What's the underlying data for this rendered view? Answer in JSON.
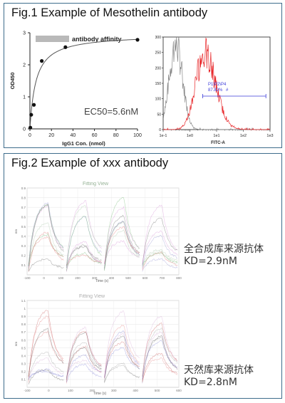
{
  "fig1": {
    "title": "Fig.1 Example of Mesothelin antibody",
    "binding_chart": {
      "legend": "antibody affinity",
      "annotation": "EC50=5.6nM"
    },
    "flow_chart": {
      "gate_name": "P1\\P2\\P4",
      "gate_percent": "87.82%",
      "gate_marker": "#"
    }
  },
  "fig2": {
    "title": "Fig.2 Example of xxx antibody",
    "chart_a_title": "Fitting View",
    "chart_a_xlabel": "Time (s)",
    "chart_b_title": "Fitting View",
    "chart_b_xlabel": "Time (s)",
    "note1_line1": "全合成库来源抗体",
    "note1_line2": "KD=2.9nM",
    "note2_line1": "天然库来源抗体",
    "note2_line2": "KD=2.8nM"
  },
  "chart_data": [
    {
      "type": "scatter",
      "xlabel": "IgG1 Con. (nmol)",
      "ylabel": "OD450",
      "xlim": [
        0,
        100
      ],
      "ylim": [
        0,
        3
      ],
      "xticks": [
        0,
        20,
        40,
        60,
        80,
        100
      ],
      "yticks": [
        0,
        1,
        2,
        3
      ],
      "points": [
        {
          "x": 0.4,
          "y": 0.04
        },
        {
          "x": 1.2,
          "y": 0.44
        },
        {
          "x": 3.7,
          "y": 0.75
        },
        {
          "x": 11,
          "y": 2.12
        },
        {
          "x": 33,
          "y": 2.55
        },
        {
          "x": 100,
          "y": 2.78
        }
      ],
      "fit_curve": {
        "model": "Bmax*x/(EC50+x)",
        "Bmax": 2.95,
        "EC50": 5.6
      }
    },
    {
      "type": "line",
      "xlabel": "FITC-A",
      "xscale": "log",
      "xlim": [
        0.1,
        1000
      ],
      "ylim": [
        0,
        300
      ],
      "xtick_labels": [
        "1e-1",
        "1e0",
        "1e1",
        "1e2",
        "1e3"
      ],
      "yticks": [
        0,
        50,
        100,
        150,
        200,
        250,
        300
      ],
      "series": [
        {
          "color": "#888888",
          "peak_x": 0.3,
          "peak_y": 275
        },
        {
          "color": "#e8272a",
          "peak_x": 3.5,
          "peak_y": 245
        }
      ],
      "gate": {
        "from": 3.0,
        "to": 700
      }
    },
    {
      "type": "line",
      "title": "Fitting View",
      "xlabel": "Time (s)",
      "ylabel": "nm",
      "xlim": [
        -100,
        800
      ],
      "ylim": [
        0,
        0.9
      ],
      "xticks": [
        -100,
        0,
        100,
        200,
        300,
        400,
        500,
        600,
        700,
        800
      ],
      "yticks": [
        0.1,
        0.2,
        0.3,
        0.4,
        0.5,
        0.6,
        0.7,
        0.8,
        0.9
      ]
    },
    {
      "type": "line",
      "title": "Fitting View",
      "xlabel": "Time (s)",
      "ylabel": "nm",
      "xlim": [
        -100,
        600
      ],
      "ylim": [
        0,
        1.1
      ],
      "xticks": [
        -100,
        0,
        100,
        200,
        300,
        400,
        500,
        600
      ],
      "yticks": [
        0.1,
        0.2,
        0.3,
        0.4,
        0.5,
        0.6,
        0.7,
        0.8,
        0.9,
        1.0,
        1.1
      ]
    }
  ]
}
